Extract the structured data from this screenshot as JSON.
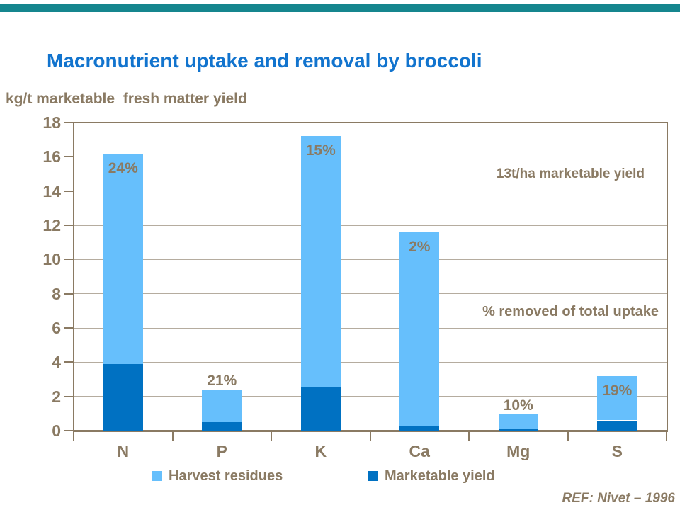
{
  "page": {
    "background": "#ffffff",
    "top_bar_color": "#15868E",
    "text_brown": "#8A7A63",
    "gridline_color": "#B5AC9F",
    "axis_color": "#8A7A63",
    "title_color": "#1274CE"
  },
  "title": {
    "text": "Macronutrient uptake and removal by broccoli"
  },
  "axis_caption": "kg/t marketable  fresh matter yield",
  "annotations": {
    "yield_note": "13t/ha marketable yield",
    "percent_note": "% removed of total uptake",
    "reference": "REF: Nivet – 1996"
  },
  "legend": [
    {
      "label": "Harvest residues",
      "color": "#66BFFC"
    },
    {
      "label": "Marketable yield",
      "color": "#0071C2"
    }
  ],
  "chart_data": {
    "type": "bar",
    "stacked": true,
    "title": "Macronutrient uptake and removal by broccoli",
    "ylabel": "kg/t marketable fresh matter yield",
    "xlabel": "",
    "ylim": [
      0,
      18
    ],
    "ytick_step": 2,
    "grid": true,
    "legend_position": "bottom",
    "categories": [
      "N",
      "P",
      "K",
      "Ca",
      "Mg",
      "S"
    ],
    "totals": [
      16.2,
      2.4,
      17.2,
      11.6,
      0.95,
      3.2
    ],
    "series": [
      {
        "name": "Marketable yield",
        "color": "#0071C2",
        "values": [
          3.9,
          0.5,
          2.55,
          0.25,
          0.1,
          0.6
        ]
      },
      {
        "name": "Harvest residues",
        "color": "#66BFFC",
        "values": [
          12.3,
          1.9,
          14.65,
          11.35,
          0.85,
          2.6
        ]
      }
    ],
    "percent_labels": [
      {
        "text": "24%",
        "inside": true
      },
      {
        "text": "21%",
        "inside": false
      },
      {
        "text": "15%",
        "inside": true
      },
      {
        "text": "2%",
        "inside": true
      },
      {
        "text": "10%",
        "inside": false
      },
      {
        "text": "19%",
        "inside": true
      }
    ]
  }
}
